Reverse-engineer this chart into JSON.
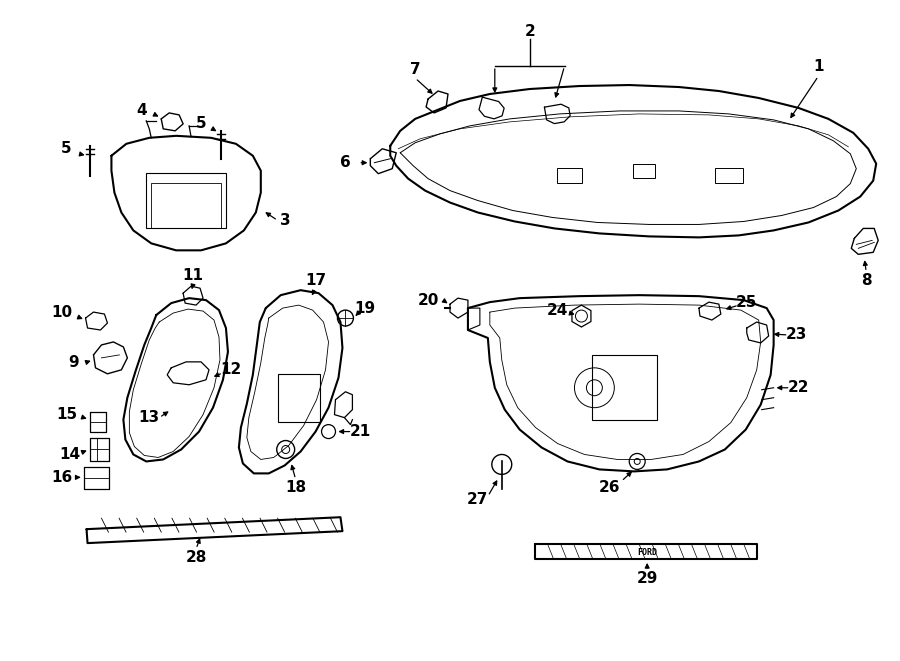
{
  "bg_color": "#ffffff",
  "line_color": "#000000",
  "fig_width": 9.0,
  "fig_height": 6.61,
  "dpi": 100,
  "font_size": 11,
  "font_size_small": 9
}
